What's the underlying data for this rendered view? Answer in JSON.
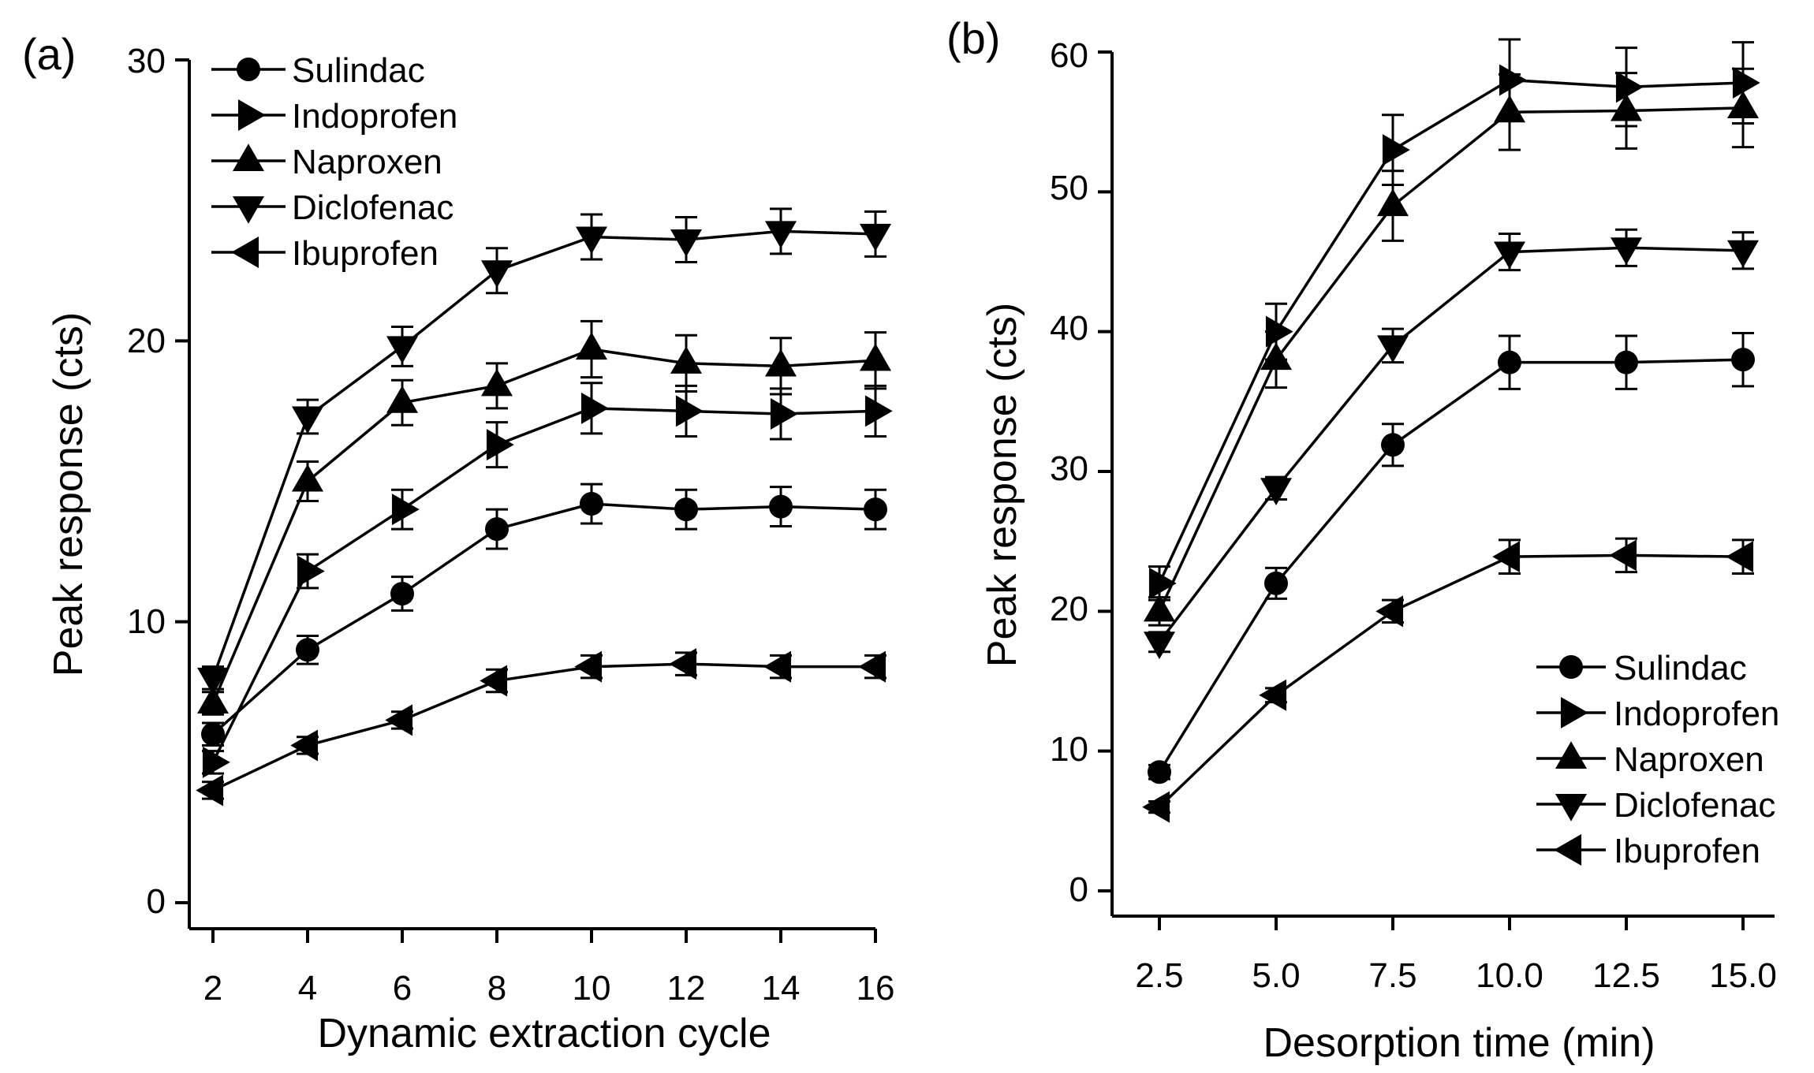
{
  "chart_data": [
    {
      "type": "line",
      "panel_label": "(a)",
      "xlabel": "Dynamic extraction cycle",
      "ylabel": "Peak response (cts)",
      "x": [
        2,
        4,
        6,
        8,
        10,
        12,
        14,
        16
      ],
      "x_tick_labels": [
        "2",
        "4",
        "6",
        "8",
        "10",
        "12",
        "14",
        "16"
      ],
      "xlim": [
        1.45,
        16.55
      ],
      "ylim": [
        0,
        30
      ],
      "y_ticks": [
        0,
        10,
        20,
        30
      ],
      "y_tick_labels": [
        "0",
        "10",
        "20",
        "30"
      ],
      "legend_position": "top-left",
      "series": [
        {
          "name": "Sulindac",
          "marker": "circle",
          "values": [
            6.0,
            9.0,
            11.0,
            13.3,
            14.2,
            14.0,
            14.1,
            14.0
          ],
          "errors": [
            0.4,
            0.5,
            0.6,
            0.7,
            0.7,
            0.7,
            0.7,
            0.7
          ]
        },
        {
          "name": "Indoprofen",
          "marker": "triangle-right",
          "values": [
            5.0,
            11.8,
            14.0,
            16.3,
            17.6,
            17.5,
            17.4,
            17.5
          ],
          "errors": [
            0.4,
            0.6,
            0.7,
            0.8,
            0.9,
            0.9,
            0.9,
            0.9
          ]
        },
        {
          "name": "Naproxen",
          "marker": "triangle-up",
          "values": [
            7.1,
            15.0,
            17.8,
            18.4,
            19.7,
            19.2,
            19.1,
            19.3
          ],
          "errors": [
            0.4,
            0.7,
            0.8,
            0.8,
            1.0,
            1.0,
            1.0,
            1.0
          ]
        },
        {
          "name": "Diclofenac",
          "marker": "triangle-down",
          "values": [
            8.0,
            17.3,
            19.8,
            22.5,
            23.7,
            23.6,
            23.9,
            23.8
          ],
          "errors": [
            0.4,
            0.6,
            0.7,
            0.8,
            0.8,
            0.8,
            0.8,
            0.8
          ]
        },
        {
          "name": "Ibuprofen",
          "marker": "triangle-left",
          "values": [
            4.0,
            5.6,
            6.5,
            7.9,
            8.4,
            8.5,
            8.4,
            8.4
          ],
          "errors": [
            0.3,
            0.3,
            0.3,
            0.4,
            0.4,
            0.4,
            0.4,
            0.4
          ]
        }
      ]
    },
    {
      "type": "line",
      "panel_label": "(b)",
      "xlabel": "Desorption time (min)",
      "ylabel": "Peak response (cts)",
      "x": [
        2.5,
        5.0,
        7.5,
        10.0,
        12.5,
        15.0
      ],
      "x_tick_labels": [
        "2.5",
        "5.0",
        "7.5",
        "10.0",
        "12.5",
        "15.0"
      ],
      "xlim": [
        1.55,
        16.15
      ],
      "ylim": [
        0,
        60
      ],
      "y_ticks": [
        0,
        10,
        20,
        30,
        40,
        50,
        60
      ],
      "y_tick_labels": [
        "0",
        "10",
        "20",
        "30",
        "40",
        "50",
        "60"
      ],
      "legend_position": "bottom-right",
      "series": [
        {
          "name": "Sulindac",
          "marker": "circle",
          "values": [
            8.5,
            22.0,
            31.9,
            37.8,
            37.8,
            38.0
          ],
          "errors": [
            0.5,
            1.1,
            1.5,
            1.9,
            1.9,
            1.9
          ]
        },
        {
          "name": "Indoprofen",
          "marker": "triangle-right",
          "values": [
            22.0,
            40.0,
            53.0,
            58.0,
            57.5,
            57.8
          ],
          "errors": [
            1.2,
            2.0,
            2.5,
            2.9,
            2.8,
            2.9
          ]
        },
        {
          "name": "Naproxen",
          "marker": "triangle-up",
          "values": [
            20.0,
            38.0,
            49.0,
            55.7,
            55.8,
            56.0
          ],
          "errors": [
            1.0,
            2.0,
            2.5,
            2.7,
            2.7,
            2.8
          ]
        },
        {
          "name": "Diclofenac",
          "marker": "triangle-down",
          "values": [
            17.8,
            28.8,
            39.0,
            45.7,
            46.0,
            45.8
          ],
          "errors": [
            0.7,
            0.8,
            1.2,
            1.3,
            1.3,
            1.3
          ]
        },
        {
          "name": "Ibuprofen",
          "marker": "triangle-left",
          "values": [
            6.0,
            14.0,
            20.0,
            23.9,
            24.0,
            23.9
          ],
          "errors": [
            0.4,
            0.5,
            0.8,
            1.2,
            1.2,
            1.2
          ]
        }
      ]
    }
  ]
}
